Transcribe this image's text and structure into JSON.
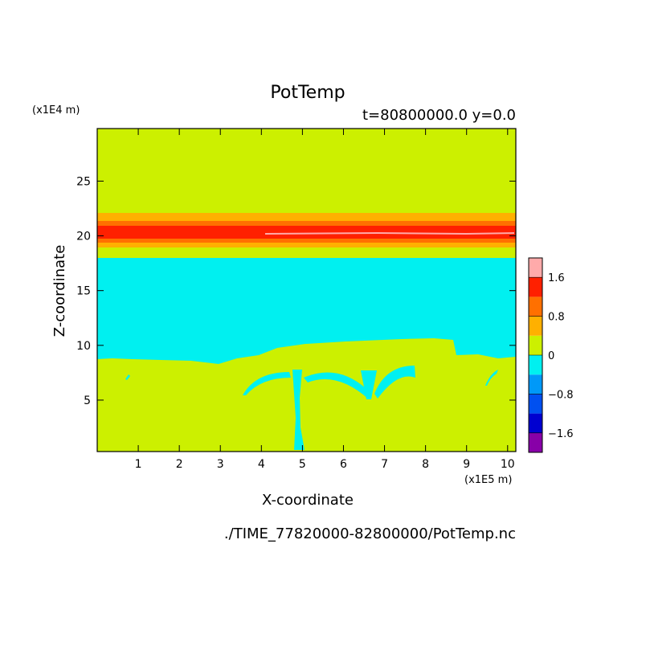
{
  "chart_data": {
    "type": "heatmap",
    "title": "PotTemp",
    "subtitle": "t=80800000.0 y=0.0",
    "xlabel": "X-coordinate",
    "ylabel": "Z-coordinate",
    "x_unit": "(x1E5 m)",
    "y_unit": "(x1E4 m)",
    "source_file": "./TIME_77820000-82800000/PotTemp.nc",
    "xlim": [
      0,
      10.2
    ],
    "ylim": [
      0.3,
      29.8
    ],
    "x_ticks": [
      "1",
      "2",
      "3",
      "4",
      "5",
      "6",
      "7",
      "8",
      "9",
      "10"
    ],
    "y_ticks": [
      "5",
      "10",
      "15",
      "20",
      "25"
    ],
    "grid": false,
    "colorbar": {
      "placement": "right",
      "range": [
        -2.0,
        2.0
      ],
      "levels": [
        {
          "from": -2.0,
          "to": -1.6,
          "color": "#8800a8"
        },
        {
          "from": -1.6,
          "to": -1.2,
          "color": "#0000d0"
        },
        {
          "from": -1.2,
          "to": -0.8,
          "color": "#0050f0"
        },
        {
          "from": -0.8,
          "to": -0.4,
          "color": "#0099f8"
        },
        {
          "from": -0.4,
          "to": 0.0,
          "color": "#00f0f0"
        },
        {
          "from": 0.0,
          "to": 0.4,
          "color": "#ccf000"
        },
        {
          "from": 0.4,
          "to": 0.8,
          "color": "#ffb000"
        },
        {
          "from": 0.8,
          "to": 1.2,
          "color": "#ff7000"
        },
        {
          "from": 1.2,
          "to": 1.6,
          "color": "#ff2000"
        },
        {
          "from": 1.6,
          "to": 2.0,
          "color": "#ffaaaa"
        }
      ],
      "tick_labels": [
        "1.6",
        "0.8",
        "0",
        "-0.8",
        "-1.6"
      ]
    },
    "field_regions": [
      {
        "description": "upper layer z 22-29.8",
        "value_range": [
          0.0,
          0.4
        ]
      },
      {
        "description": "stable layer z 19-22",
        "value_range": [
          0.4,
          2.0
        ]
      },
      {
        "description": "mid layer z 9-18",
        "value_range": [
          -0.4,
          0.0
        ]
      },
      {
        "description": "lower layer z 0-9 with cold plume near x=5",
        "value_range": [
          -0.4,
          0.4
        ]
      }
    ]
  }
}
